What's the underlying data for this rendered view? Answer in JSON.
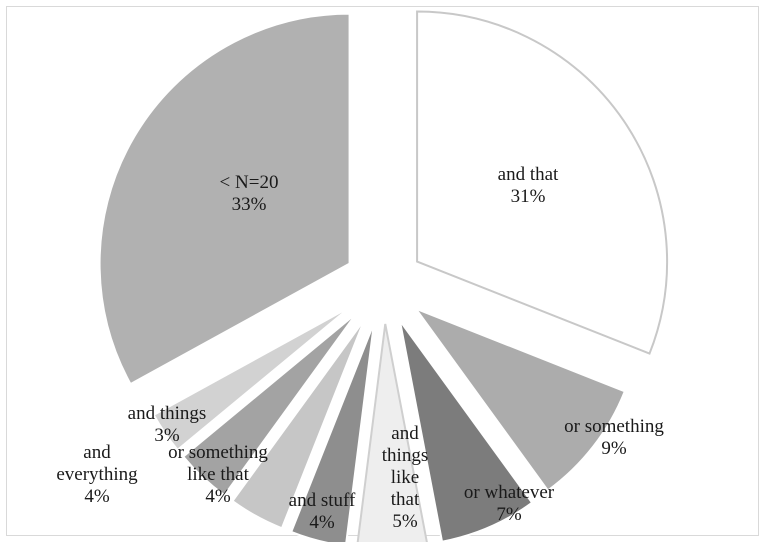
{
  "chart_data": {
    "type": "pie",
    "title": "",
    "slices": [
      {
        "label": "and that",
        "value": 31,
        "value_label": "31%",
        "color": "#ffffff",
        "stroke": "#c8c8c8"
      },
      {
        "label": "or something",
        "value": 9,
        "value_label": "9%",
        "color": "#acacac",
        "stroke": "#ffffff"
      },
      {
        "label": "or whatever",
        "value": 7,
        "value_label": "7%",
        "color": "#7c7c7c",
        "stroke": "#ffffff"
      },
      {
        "label": "and things like that",
        "value": 5,
        "value_label": "5%",
        "color": "#eeeeee",
        "stroke": "#cfcfcf"
      },
      {
        "label": "and stuff",
        "value": 4,
        "value_label": "4%",
        "color": "#8e8e8e",
        "stroke": "#ffffff"
      },
      {
        "label": "or something like that",
        "value": 4,
        "value_label": "4%",
        "color": "#c6c6c6",
        "stroke": "#ffffff"
      },
      {
        "label": "and everything",
        "value": 4,
        "value_label": "4%",
        "color": "#a3a3a3",
        "stroke": "#ffffff"
      },
      {
        "label": "and things",
        "value": 3,
        "value_label": "3%",
        "color": "#d2d2d2",
        "stroke": "#ffffff"
      },
      {
        "label": "< N=20",
        "value": 33,
        "value_label": "33%",
        "color": "#b1b1b1",
        "stroke": "#ffffff"
      }
    ],
    "legend": "none",
    "exploded": true,
    "start": "12 o'clock, clockwise"
  }
}
